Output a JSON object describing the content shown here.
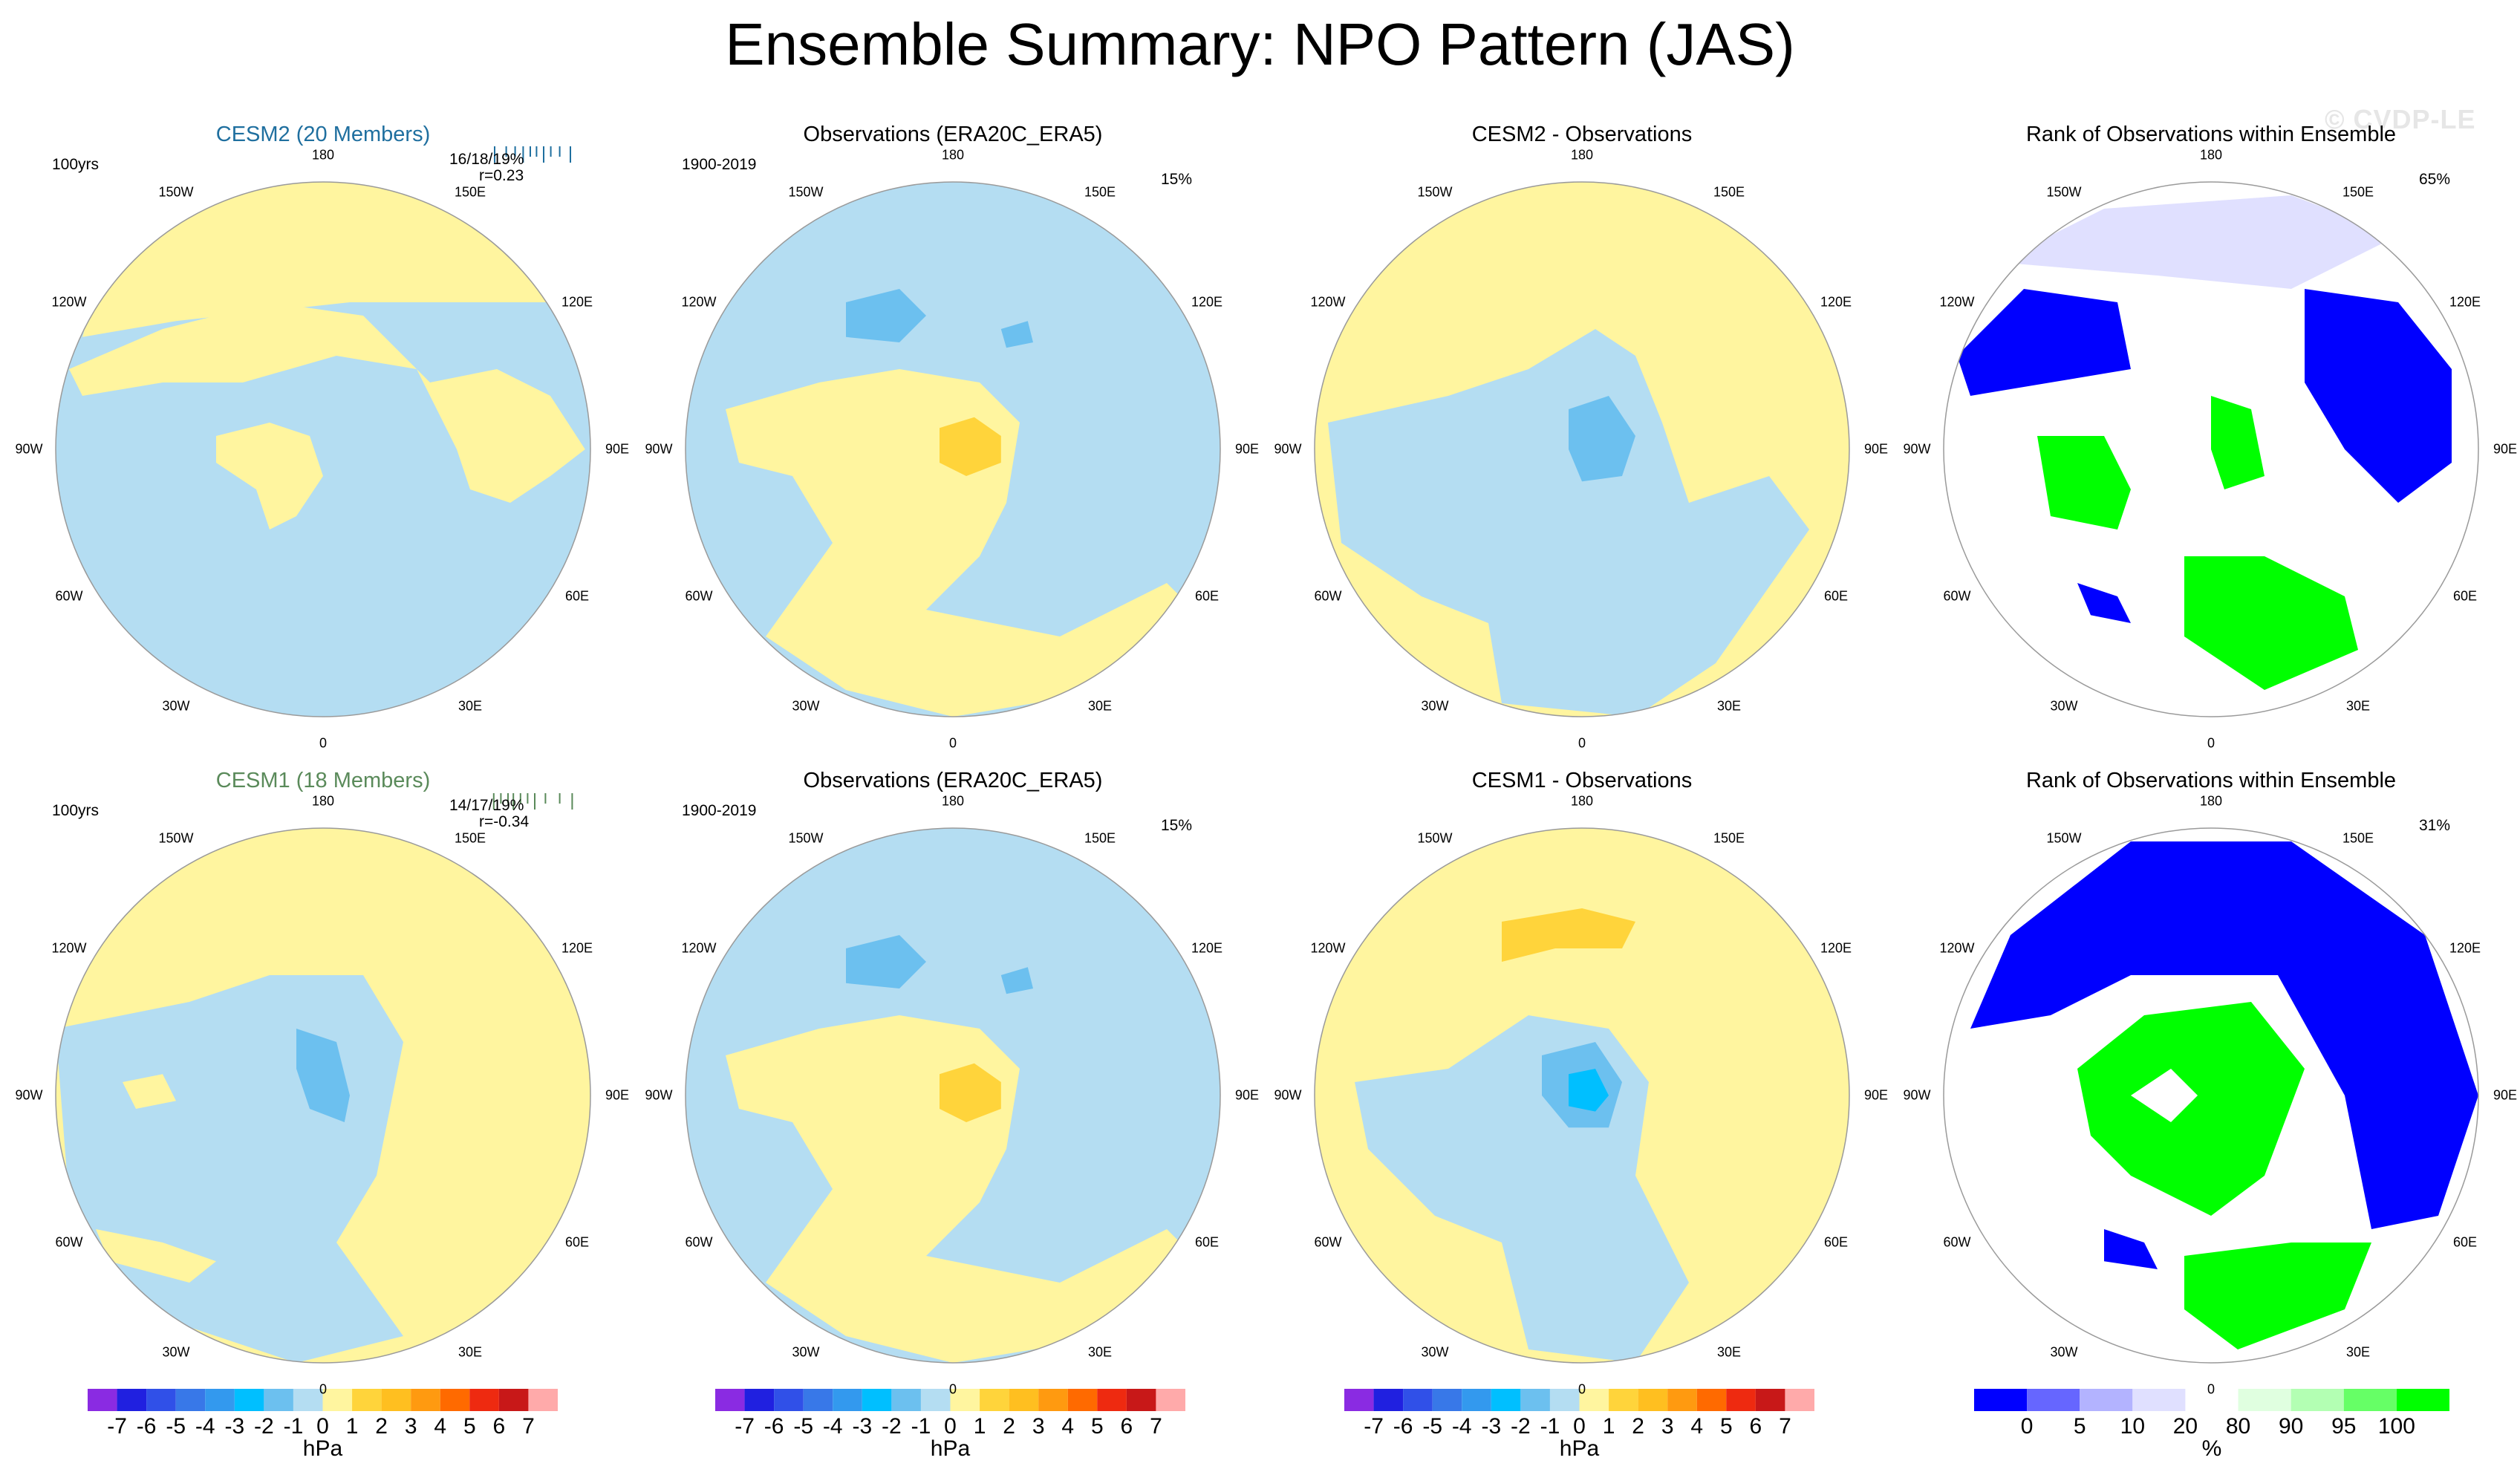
{
  "page": {
    "title": "Ensemble Summary: NPO Pattern (JAS)",
    "watermark": "© CVDP-LE"
  },
  "colors": {
    "blue_light": "#b4ddf2",
    "blue_mid": "#6cc0ef",
    "blue_bright": "#00bfff",
    "yellow_light": "#fff59f",
    "yellow_mid": "#ffd43b",
    "rank_blue": "#0000ff",
    "rank_blue2": "#6666ff",
    "rank_blue3": "#b3b3ff",
    "rank_blue4": "#e0e0ff",
    "rank_white": "#ffffff",
    "rank_green1": "#e0ffe0",
    "rank_green2": "#b3ffb3",
    "rank_green3": "#66ff66",
    "rank_green4": "#00ff00",
    "cesm2_title": "#1f6f9f",
    "cesm1_title": "#5a8a5a"
  },
  "panels": [
    {
      "id": "r1c1",
      "title": "CESM2 (20 Members)",
      "left_note": "100yrs",
      "right_note": "",
      "stat1": "16/18/19%",
      "stat2": "r=0.23"
    },
    {
      "id": "r1c2",
      "title": "Observations (ERA20C_ERA5)",
      "left_note": "1900-2019",
      "right_note": "15%",
      "stat1": "",
      "stat2": ""
    },
    {
      "id": "r1c3",
      "title": "CESM2 - Observations",
      "left_note": "",
      "right_note": "",
      "stat1": "",
      "stat2": ""
    },
    {
      "id": "r1c4",
      "title": "Rank of Observations within Ensemble",
      "left_note": "",
      "right_note": "65%",
      "stat1": "",
      "stat2": ""
    },
    {
      "id": "r2c1",
      "title": "CESM1 (18 Members)",
      "left_note": "100yrs",
      "right_note": "",
      "stat1": "14/17/19%",
      "stat2": "r=-0.34"
    },
    {
      "id": "r2c2",
      "title": "Observations (ERA20C_ERA5)",
      "left_note": "1900-2019",
      "right_note": "15%",
      "stat1": "",
      "stat2": ""
    },
    {
      "id": "r2c3",
      "title": "CESM1 - Observations",
      "left_note": "",
      "right_note": "",
      "stat1": "",
      "stat2": ""
    },
    {
      "id": "r2c4",
      "title": "Rank of Observations within Ensemble",
      "left_note": "",
      "right_note": "31%",
      "stat1": "",
      "stat2": ""
    }
  ],
  "map_labels": {
    "top": "180",
    "bottom": "0",
    "upper_left": "150W",
    "upper_right": "150E",
    "mid_upper_left": "120W",
    "mid_upper_right": "120E",
    "left": "90W",
    "right": "90E",
    "mid_lower_left": "60W",
    "mid_lower_right": "60E",
    "lower_left": "30W",
    "lower_right": "30E"
  },
  "chart_data": [
    {
      "type": "heatmap",
      "name": "hPa colorbar",
      "units": "hPa",
      "tick_labels": [
        "-7",
        "-6",
        "-5",
        "-4",
        "-3",
        "-2",
        "-1",
        "0",
        "1",
        "2",
        "3",
        "4",
        "5",
        "6",
        "7"
      ],
      "bin_colors": [
        "#8a2be2",
        "#2020e0",
        "#3050e8",
        "#3878e8",
        "#3399ee",
        "#00bfff",
        "#6cc0ef",
        "#b4ddf2",
        "#fff59f",
        "#ffd43b",
        "#ffbf20",
        "#ff9a10",
        "#ff6a00",
        "#ee2a10",
        "#c81818",
        "#ffaaaa"
      ]
    },
    {
      "type": "heatmap",
      "name": "rank colorbar",
      "units": "%",
      "tick_labels": [
        "0",
        "5",
        "10",
        "20",
        "80",
        "90",
        "95",
        "100"
      ],
      "bin_colors": [
        "#0000ff",
        "#6666ff",
        "#b3b3ff",
        "#e0e0ff",
        "#ffffff",
        "#e0ffe0",
        "#b3ffb3",
        "#66ff66",
        "#00ff00"
      ]
    }
  ],
  "member_ticks": {
    "r1": [
      0.05,
      0.18,
      0.28,
      0.37,
      0.45,
      0.52,
      0.6,
      0.68,
      0.78,
      0.9
    ],
    "r2": [
      0.04,
      0.12,
      0.2,
      0.26,
      0.34,
      0.42,
      0.5,
      0.62,
      0.78,
      0.92
    ]
  }
}
